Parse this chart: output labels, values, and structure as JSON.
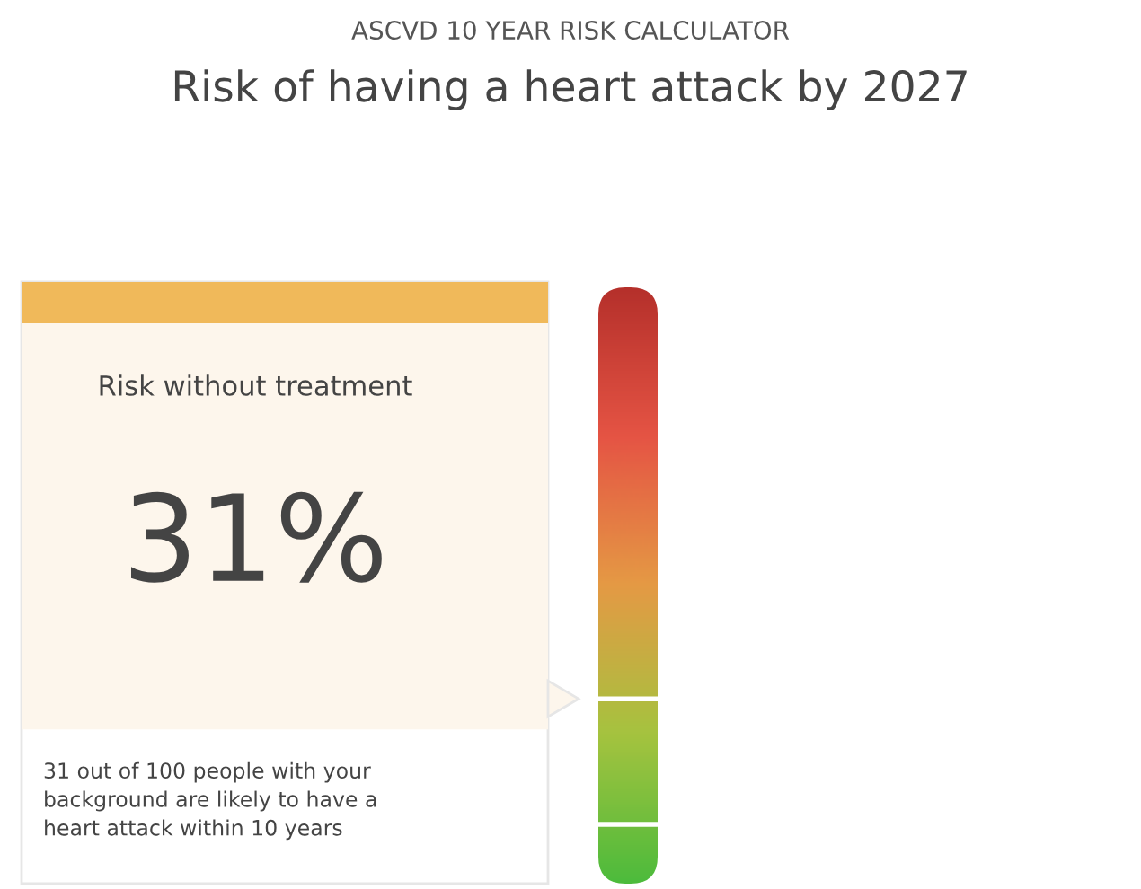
{
  "chart_data": {
    "type": "other",
    "subtitle": "ASCVD 10 YEAR RISK CALCULATOR",
    "title": "Risk of having a heart attack by 2027",
    "categories": [
      "Risk without treatment"
    ],
    "values": [
      31
    ],
    "value_labels": [
      "31%"
    ],
    "annotations": [
      "31 out of 100 people with your\nbackground are likely to have a\nheart attack within 10 years"
    ],
    "color": "#fdf6ec"
  }
}
